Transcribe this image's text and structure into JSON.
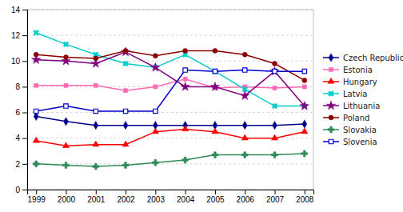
{
  "chart_data": {
    "type": "line",
    "x": [
      1999,
      2000,
      2001,
      2002,
      2003,
      2004,
      2005,
      2006,
      2007,
      2008
    ],
    "xlim": [
      1998.7,
      2008.3
    ],
    "xticks": [
      1999,
      2000,
      2001,
      2002,
      2003,
      2004,
      2005,
      2006,
      2007,
      2008
    ],
    "ylim": [
      0,
      14
    ],
    "yticks": [
      0,
      2,
      4,
      6,
      8,
      10,
      12,
      14
    ],
    "grid": true,
    "legend": "right",
    "series": [
      {
        "name": "Czech Republic",
        "color": "#00008B",
        "marker": "diamond",
        "values": [
          5.7,
          5.3,
          5.0,
          5.0,
          5.0,
          5.0,
          5.0,
          5.0,
          5.0,
          5.1
        ]
      },
      {
        "name": "Estonia",
        "color": "#FF69B4",
        "marker": "square",
        "values": [
          8.1,
          8.1,
          8.1,
          7.7,
          8.0,
          8.6,
          7.9,
          8.0,
          7.9,
          8.0
        ]
      },
      {
        "name": "Hungary",
        "color": "#FF0000",
        "marker": "triangle",
        "values": [
          3.8,
          3.4,
          3.5,
          3.5,
          4.5,
          4.7,
          4.5,
          4.0,
          4.0,
          4.5
        ]
      },
      {
        "name": "Latvia",
        "color": "#00CCCC",
        "marker": "x",
        "values": [
          12.2,
          11.3,
          10.5,
          9.8,
          9.5,
          10.5,
          9.2,
          7.8,
          6.5,
          6.5
        ]
      },
      {
        "name": "Lithuania",
        "color": "#800080",
        "marker": "star",
        "values": [
          10.1,
          10.0,
          9.8,
          10.7,
          9.5,
          8.0,
          8.0,
          7.3,
          9.2,
          6.5
        ]
      },
      {
        "name": "Poland",
        "color": "#8B0000",
        "marker": "circle",
        "values": [
          10.5,
          10.3,
          10.2,
          10.8,
          10.4,
          10.8,
          10.8,
          10.5,
          9.8,
          8.5
        ]
      },
      {
        "name": "Slovakia",
        "color": "#2E8B57",
        "marker": "plus",
        "values": [
          2.0,
          1.9,
          1.8,
          1.9,
          2.1,
          2.3,
          2.7,
          2.7,
          2.7,
          2.8
        ]
      },
      {
        "name": "Slovenia",
        "color": "#0000CD",
        "marker": "square-open",
        "values": [
          6.1,
          6.5,
          6.1,
          6.1,
          6.1,
          9.3,
          9.2,
          9.3,
          9.2,
          9.2
        ]
      }
    ]
  }
}
